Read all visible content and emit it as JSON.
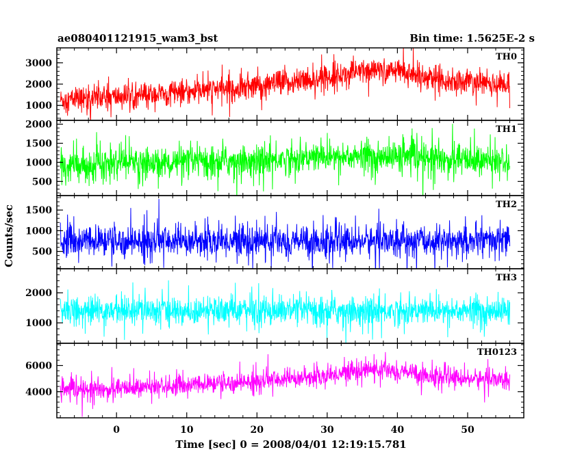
{
  "chart_data": {
    "type": "line",
    "title": "ae080401121915_wam3_bst",
    "subtitle": "Bin time: 1.5625E-2 s",
    "xlabel": "Time [sec] 0 = 2008/04/01 12:19:15.781",
    "ylabel": "Counts/sec",
    "xlim": [
      -8.5,
      58
    ],
    "x_ticks": [
      0,
      10,
      20,
      30,
      40,
      50
    ],
    "x_tick_labels": [
      "0",
      "10",
      "20",
      "30",
      "40",
      "50"
    ],
    "x_data_range": [
      -8,
      56
    ],
    "grid": false,
    "panels": [
      {
        "name": "TH0",
        "color": "#ff0000",
        "ylim": [
          300,
          3700
        ],
        "y_ticks": [
          1000,
          2000,
          3000
        ],
        "y_tick_labels": [
          "1000",
          "2000",
          "3000"
        ],
        "trend": [
          [
            -8,
            1250
          ],
          [
            0,
            1400
          ],
          [
            10,
            1600
          ],
          [
            20,
            1900
          ],
          [
            30,
            2300
          ],
          [
            35,
            2600
          ],
          [
            40,
            2600
          ],
          [
            45,
            2300
          ],
          [
            50,
            2100
          ],
          [
            56,
            1950
          ]
        ],
        "noise": 520
      },
      {
        "name": "TH1",
        "color": "#00ff00",
        "ylim": [
          130,
          2100
        ],
        "y_ticks": [
          500,
          1000,
          1500,
          2000
        ],
        "y_tick_labels": [
          "500",
          "1000",
          "1500",
          "2000"
        ],
        "trend": [
          [
            -8,
            900
          ],
          [
            0,
            950
          ],
          [
            10,
            1000
          ],
          [
            20,
            1050
          ],
          [
            30,
            1150
          ],
          [
            40,
            1150
          ],
          [
            50,
            1050
          ],
          [
            56,
            1000
          ]
        ],
        "noise": 360
      },
      {
        "name": "TH2",
        "color": "#0000ff",
        "ylim": [
          80,
          1850
        ],
        "y_ticks": [
          500,
          1000,
          1500
        ],
        "y_tick_labels": [
          "500",
          "1000",
          "1500"
        ],
        "trend": [
          [
            -8,
            750
          ],
          [
            56,
            750
          ]
        ],
        "noise": 330
      },
      {
        "name": "TH3",
        "color": "#00ffff",
        "ylim": [
          320,
          2800
        ],
        "y_ticks": [
          1000,
          2000
        ],
        "y_tick_labels": [
          "1000",
          "2000"
        ],
        "trend": [
          [
            -8,
            1400
          ],
          [
            56,
            1400
          ]
        ],
        "noise": 420
      },
      {
        "name": "TH0123",
        "color": "#ff00ff",
        "ylim": [
          2000,
          7700
        ],
        "y_ticks": [
          4000,
          6000
        ],
        "y_tick_labels": [
          "4000",
          "6000"
        ],
        "trend": [
          [
            -8,
            4100
          ],
          [
            0,
            4200
          ],
          [
            10,
            4500
          ],
          [
            20,
            4800
          ],
          [
            30,
            5200
          ],
          [
            35,
            5700
          ],
          [
            40,
            5600
          ],
          [
            45,
            5200
          ],
          [
            50,
            5000
          ],
          [
            56,
            4900
          ]
        ],
        "noise": 650
      }
    ]
  }
}
